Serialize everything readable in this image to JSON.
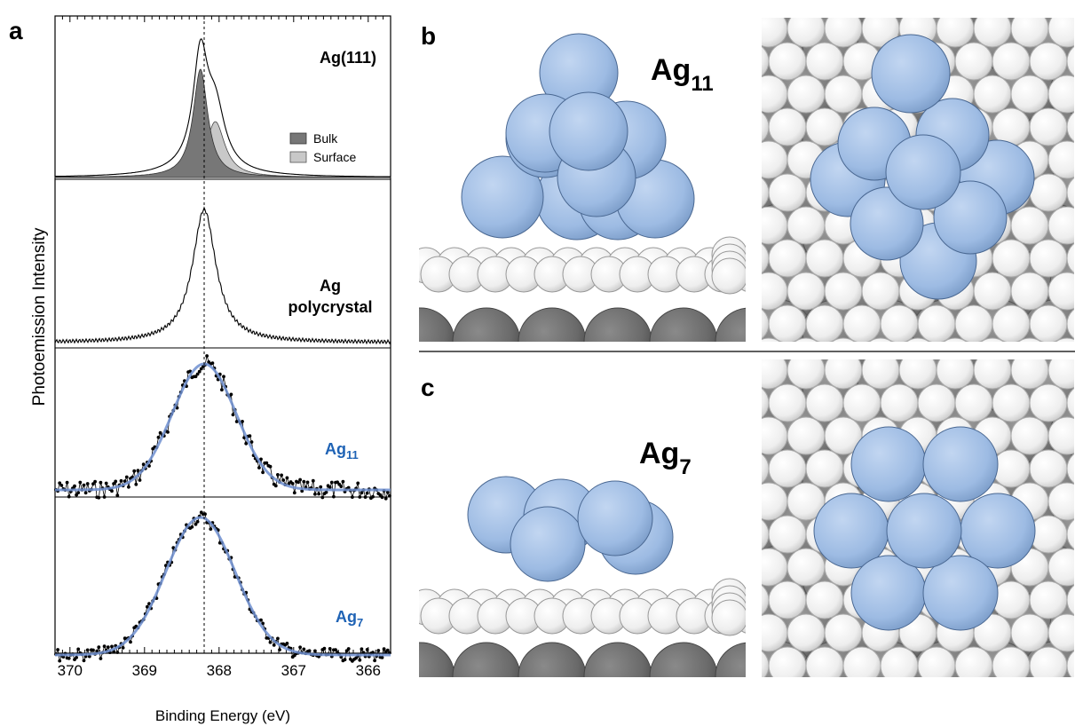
{
  "panels": {
    "a": {
      "letter": "a",
      "labels": {
        "ag111": "Ag(111)",
        "poly_line1": "Ag",
        "poly_line2": "polycrystal",
        "ag11_base": "Ag",
        "ag11_sub": "11",
        "ag7_base": "Ag",
        "ag7_sub": "7"
      },
      "legend": {
        "bulk": "Bulk",
        "surface": "Surface"
      }
    },
    "b": {
      "letter": "b",
      "label_base": "Ag",
      "label_sub": "11"
    },
    "c": {
      "letter": "c",
      "label_base": "Ag",
      "label_sub": "7"
    }
  },
  "colors": {
    "cluster_atom": "#9dbbe3",
    "surface_atom": "#f2f2f2",
    "substrate_atom": "#7d7d7d",
    "bulk_fill": "#777777",
    "surface_fill": "#c8c8c8",
    "fit_line": "#6f8fd0",
    "label_blue": "#1f63b5"
  },
  "chart_data": {
    "type": "line",
    "xlabel": "Binding Energy (eV)",
    "ylabel": "Photoemission Intensity",
    "xlim": [
      370.2,
      365.7
    ],
    "x_reversed": true,
    "xticks": [
      370,
      369,
      368,
      367,
      366
    ],
    "reference_line_x": 368.2,
    "grid": false,
    "legend_position": "inside top panel, right",
    "series": [
      {
        "name": "Ag(111)",
        "peak_ev": 368.2,
        "components": [
          "Bulk",
          "Surface"
        ],
        "bulk_peak_ev": 368.25,
        "surface_peak_ev": 368.05
      },
      {
        "name": "Ag polycrystal",
        "peak_ev": 368.2
      },
      {
        "name": "Ag11",
        "peak_ev": 368.2,
        "style": "data points with fit"
      },
      {
        "name": "Ag7",
        "peak_ev": 368.25,
        "style": "data points with fit"
      }
    ]
  }
}
